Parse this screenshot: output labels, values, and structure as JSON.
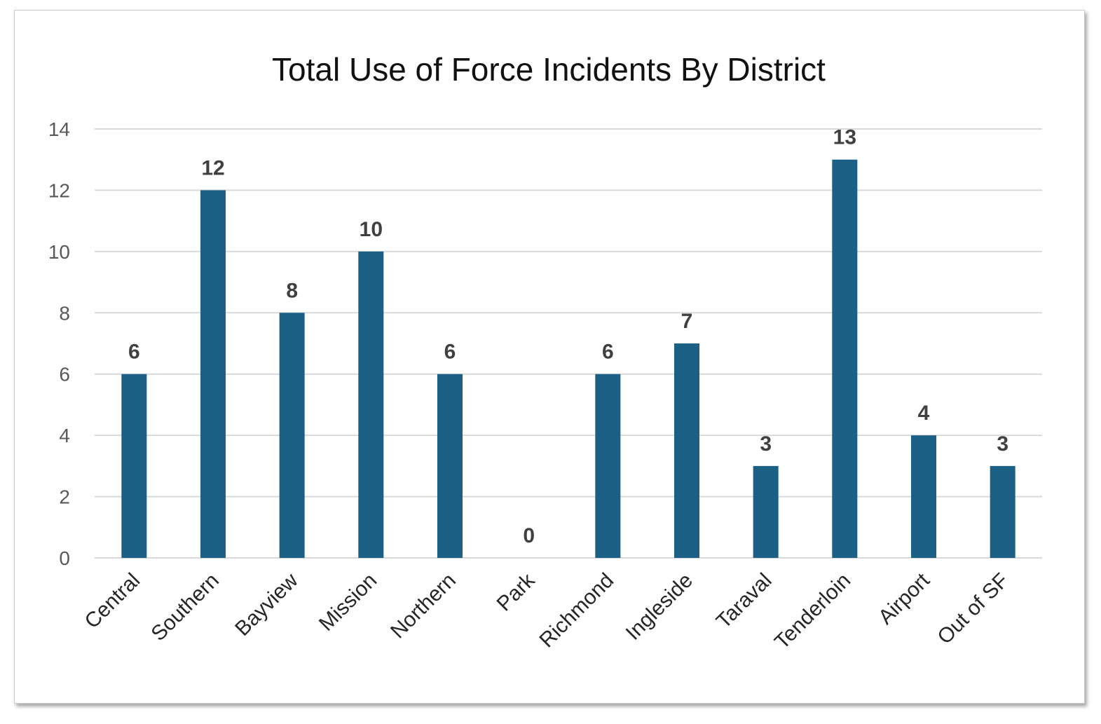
{
  "chart_data": {
    "type": "bar",
    "title": "Total Use of Force Incidents By District",
    "xlabel": "",
    "ylabel": "",
    "categories": [
      "Central",
      "Southern",
      "Bayview",
      "Mission",
      "Northern",
      "Park",
      "Richmond",
      "Ingleside",
      "Taraval",
      "Tenderloin",
      "Airport",
      "Out of SF"
    ],
    "values": [
      6,
      12,
      8,
      10,
      6,
      0,
      6,
      7,
      3,
      13,
      4,
      3
    ],
    "ylim": [
      0,
      14
    ],
    "yticks": [
      0,
      2,
      4,
      6,
      8,
      10,
      12,
      14
    ],
    "grid": true,
    "data_labels": true,
    "bar_color": "#1c6185"
  }
}
